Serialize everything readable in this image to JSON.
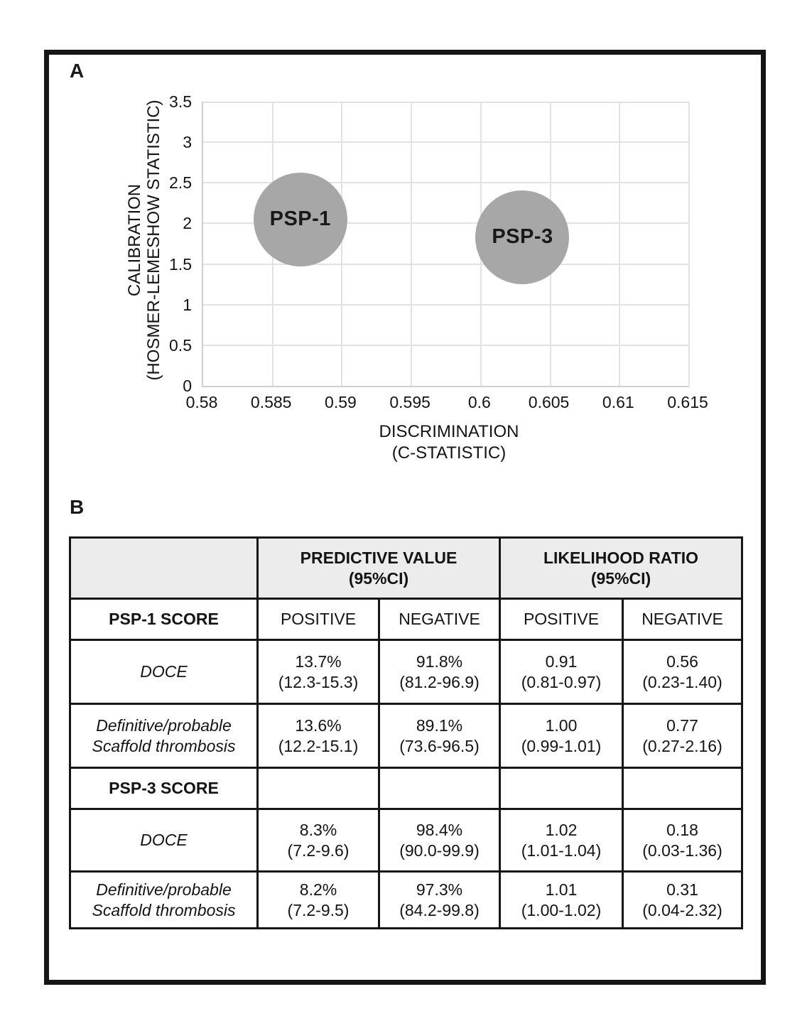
{
  "figure": {
    "panel_a_label": "A",
    "panel_b_label": "B"
  },
  "chart_data": {
    "type": "scatter",
    "subtype": "bubble",
    "title": "",
    "xlabel_lines": [
      "DISCRIMINATION",
      "(C-STATISTIC)"
    ],
    "ylabel_lines": [
      "CALIBRATION",
      "(HOSMER-LEMESHOW STATISTIC)"
    ],
    "xlim": [
      0.58,
      0.615
    ],
    "ylim": [
      0,
      3.5
    ],
    "x_ticks": [
      0.58,
      0.585,
      0.59,
      0.595,
      0.6,
      0.605,
      0.61,
      0.615
    ],
    "x_tick_labels": [
      "0.58",
      "0.585",
      "0.59",
      "0.595",
      "0.6",
      "0.605",
      "0.61",
      "0.615"
    ],
    "y_ticks": [
      0,
      0.5,
      1,
      1.5,
      2,
      2.5,
      3,
      3.5
    ],
    "y_tick_labels": [
      "0",
      "0.5",
      "1",
      "1.5",
      "2",
      "2.5",
      "3",
      "3.5"
    ],
    "grid": true,
    "legend": false,
    "points": [
      {
        "label": "PSP-1",
        "x": 0.587,
        "y": 2.05,
        "radius_px": 66
      },
      {
        "label": "PSP-3",
        "x": 0.603,
        "y": 1.83,
        "radius_px": 66
      }
    ],
    "colors": {
      "bubble_fill": "#a7a7a7",
      "bubble_label": "#191919",
      "gridline": "#e2e2e2",
      "axis_line": "#cfcfcf"
    }
  },
  "table": {
    "header_fill": "#ececec",
    "group_headers": [
      {
        "line1": "PREDICTIVE VALUE",
        "line2": "(95%CI)"
      },
      {
        "line1": "LIKELIHOOD RATIO",
        "line2": "(95%CI)"
      }
    ],
    "rows": [
      {
        "label": "PSP-1 SCORE",
        "cells": [
          "POSITIVE",
          "NEGATIVE",
          "POSITIVE",
          "NEGATIVE"
        ]
      },
      {
        "label": "DOCE",
        "cells": [
          {
            "value": "13.7%",
            "ci": "(12.3-15.3)"
          },
          {
            "value": "91.8%",
            "ci": "(81.2-96.9)"
          },
          {
            "value": "0.91",
            "ci": "(0.81-0.97)"
          },
          {
            "value": "0.56",
            "ci": "(0.23-1.40)"
          }
        ]
      },
      {
        "label_lines": [
          "Definitive/probable",
          "Scaffold thrombosis"
        ],
        "cells": [
          {
            "value": "13.6%",
            "ci": "(12.2-15.1)"
          },
          {
            "value": "89.1%",
            "ci": "(73.6-96.5)"
          },
          {
            "value": "1.00",
            "ci": "(0.99-1.01)"
          },
          {
            "value": "0.77",
            "ci": "(0.27-2.16)"
          }
        ]
      },
      {
        "label": "PSP-3 SCORE",
        "cells": [
          "",
          "",
          "",
          ""
        ]
      },
      {
        "label": "DOCE",
        "cells": [
          {
            "value": "8.3%",
            "ci": "(7.2-9.6)"
          },
          {
            "value": "98.4%",
            "ci": "(90.0-99.9)"
          },
          {
            "value": "1.02",
            "ci": "(1.01-1.04)"
          },
          {
            "value": "0.18",
            "ci": "(0.03-1.36)"
          }
        ]
      },
      {
        "label_lines": [
          "Definitive/probable",
          "Scaffold thrombosis"
        ],
        "cells": [
          {
            "value": "8.2%",
            "ci": "(7.2-9.5)"
          },
          {
            "value": "97.3%",
            "ci": "(84.2-99.8)"
          },
          {
            "value": "1.01",
            "ci": "(1.00-1.02)"
          },
          {
            "value": "0.31",
            "ci": "(0.04-2.32)"
          }
        ]
      }
    ]
  }
}
